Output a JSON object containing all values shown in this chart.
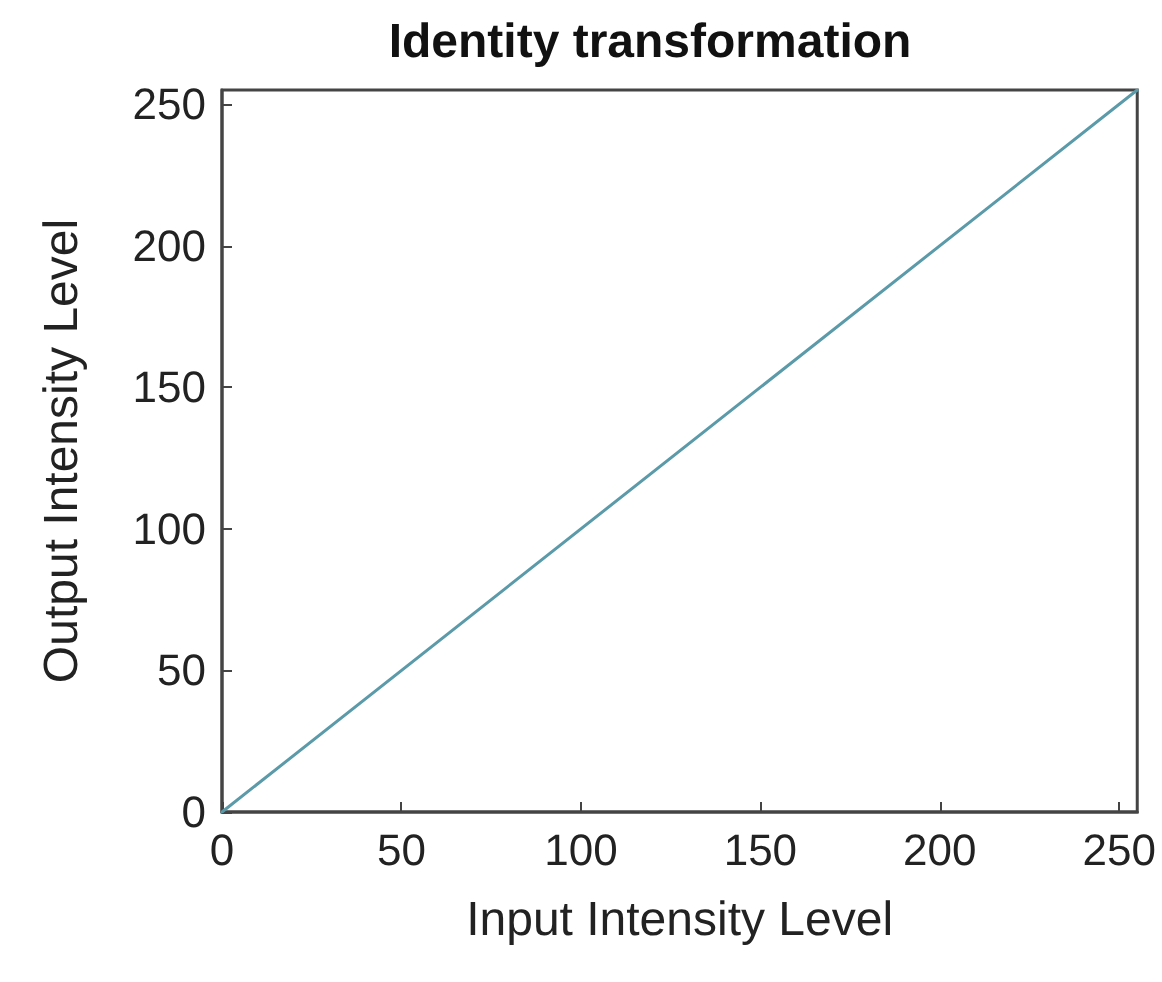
{
  "chart_data": {
    "type": "line",
    "title": "Identity transformation",
    "xlabel": "Input Intensity Level",
    "ylabel": "Output Intensity Level",
    "x": [
      0,
      255
    ],
    "series": [
      {
        "color": "#5b9aa9",
        "values": [
          0,
          255
        ]
      }
    ],
    "xlim": [
      0,
      255
    ],
    "ylim": [
      0,
      255
    ],
    "xticks": [
      0,
      50,
      100,
      150,
      200,
      250
    ],
    "yticks": [
      0,
      50,
      100,
      150,
      200,
      250
    ],
    "grid": false,
    "marker": "none",
    "line_style": "solid"
  }
}
